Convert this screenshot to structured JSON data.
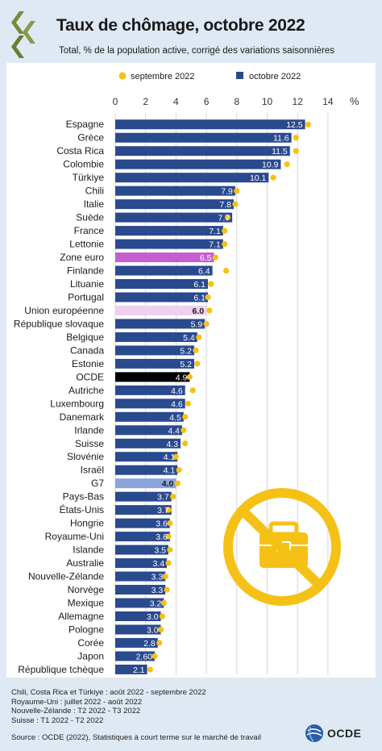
{
  "header": {
    "title": "Taux de chômage, octobre 2022",
    "subtitle": "Total, % de la population active, corrigé des variations saisonnières"
  },
  "footer": {
    "notes": [
      "Chili, Costa Rica et Türkiye : août 2022 - septembre 2022",
      "Royaume-Uni : juillet 2022 - août 2022",
      "Nouvelle-Zélande : T2 2022 - T3 2022",
      "Suisse : T1 2022 - T2 2022"
    ],
    "source": "Source : OCDE (2022), Statistiques à court terme sur le marché de travail",
    "org": "OCDE"
  },
  "colors": {
    "bar": "#2a4a8e",
    "dot": "#f5c116",
    "euro_area": "#c55fd0",
    "eu": "#f0d0ee",
    "oecd": "#000000",
    "g7": "#8aa4da",
    "background": "#dfe9f4",
    "icon": "#f5c116"
  },
  "chart_data": {
    "type": "bar",
    "orientation": "horizontal",
    "xlim": [
      0,
      14
    ],
    "xticks": [
      "0",
      "2",
      "4",
      "6",
      "8",
      "10",
      "12",
      "14"
    ],
    "xunit": "%",
    "legend": [
      {
        "label": "septembre 2022",
        "marker": "dot"
      },
      {
        "label": "octobre 2022",
        "marker": "square"
      }
    ],
    "legend_position": "top",
    "categories": [
      "Espagne",
      "Grèce",
      "Costa Rica",
      "Colombie",
      "Türkiye",
      "Chili",
      "Italie",
      "Suède",
      "France",
      "Lettonie",
      "Zone euro",
      "Finlande",
      "Lituanie",
      "Portugal",
      "Union européenne",
      "République slovaque",
      "Belgique",
      "Canada",
      "Estonie",
      "OCDE",
      "Autriche",
      "Luxembourg",
      "Danemark",
      "Irlande",
      "Suisse",
      "Slovénie",
      "Israël",
      "G7",
      "Pays-Bas",
      "États-Unis",
      "Hongrie",
      "Royaume-Uni",
      "Islande",
      "Australie",
      "Nouvelle-Zélande",
      "Norvège",
      "Mexique",
      "Allemagne",
      "Pologne",
      "Corée",
      "Japon",
      "République tchèque"
    ],
    "series": [
      {
        "name": "octobre 2022",
        "values": [
          12.5,
          11.6,
          11.5,
          10.9,
          10.1,
          7.9,
          7.8,
          7.7,
          7.1,
          7.1,
          6.5,
          6.4,
          6.1,
          6.1,
          6.0,
          5.9,
          5.4,
          5.2,
          5.2,
          4.9,
          4.6,
          4.6,
          4.5,
          4.4,
          4.3,
          4.1,
          4.1,
          4.0,
          3.7,
          3.7,
          3.6,
          3.6,
          3.5,
          3.4,
          3.3,
          3.3,
          3.2,
          3.0,
          3.0,
          2.8,
          2.6,
          2.1
        ],
        "labels": [
          "12.5",
          "11.6",
          "11.5",
          "10.9",
          "10.1",
          "7.9",
          "7.8",
          "7.7",
          "7.1",
          "7.1",
          "6.5",
          "6.4",
          "6.1",
          "6.1",
          "6.0",
          "5.9",
          "5.4",
          "5.2",
          "5.2",
          "4.9",
          "4.6",
          "4.6",
          "4.5",
          "4.4",
          "4.3",
          "4.1",
          "4.1",
          "4.0",
          "3.7",
          "3.7",
          "3.6",
          "3.6",
          "3.5",
          "3.4",
          "3.3",
          "3.3",
          "3.2",
          "3.0",
          "3.0",
          "2.8",
          "2.60",
          "2.1"
        ]
      },
      {
        "name": "septembre 2022",
        "values": [
          12.7,
          11.9,
          11.9,
          11.3,
          10.4,
          8.0,
          7.9,
          7.4,
          7.2,
          7.2,
          6.6,
          7.3,
          6.3,
          6.1,
          6.2,
          6.0,
          5.5,
          5.3,
          5.4,
          4.9,
          5.1,
          4.8,
          4.6,
          4.5,
          4.6,
          4.0,
          4.2,
          4.1,
          3.8,
          3.5,
          3.6,
          3.5,
          3.6,
          3.5,
          3.3,
          3.4,
          3.2,
          3.1,
          3.0,
          2.9,
          2.6,
          2.3
        ]
      }
    ],
    "highlights": {
      "Zone euro": "euro_area",
      "Union européenne": "eu",
      "OCDE": "oecd",
      "G7": "g7"
    },
    "grid": true
  }
}
